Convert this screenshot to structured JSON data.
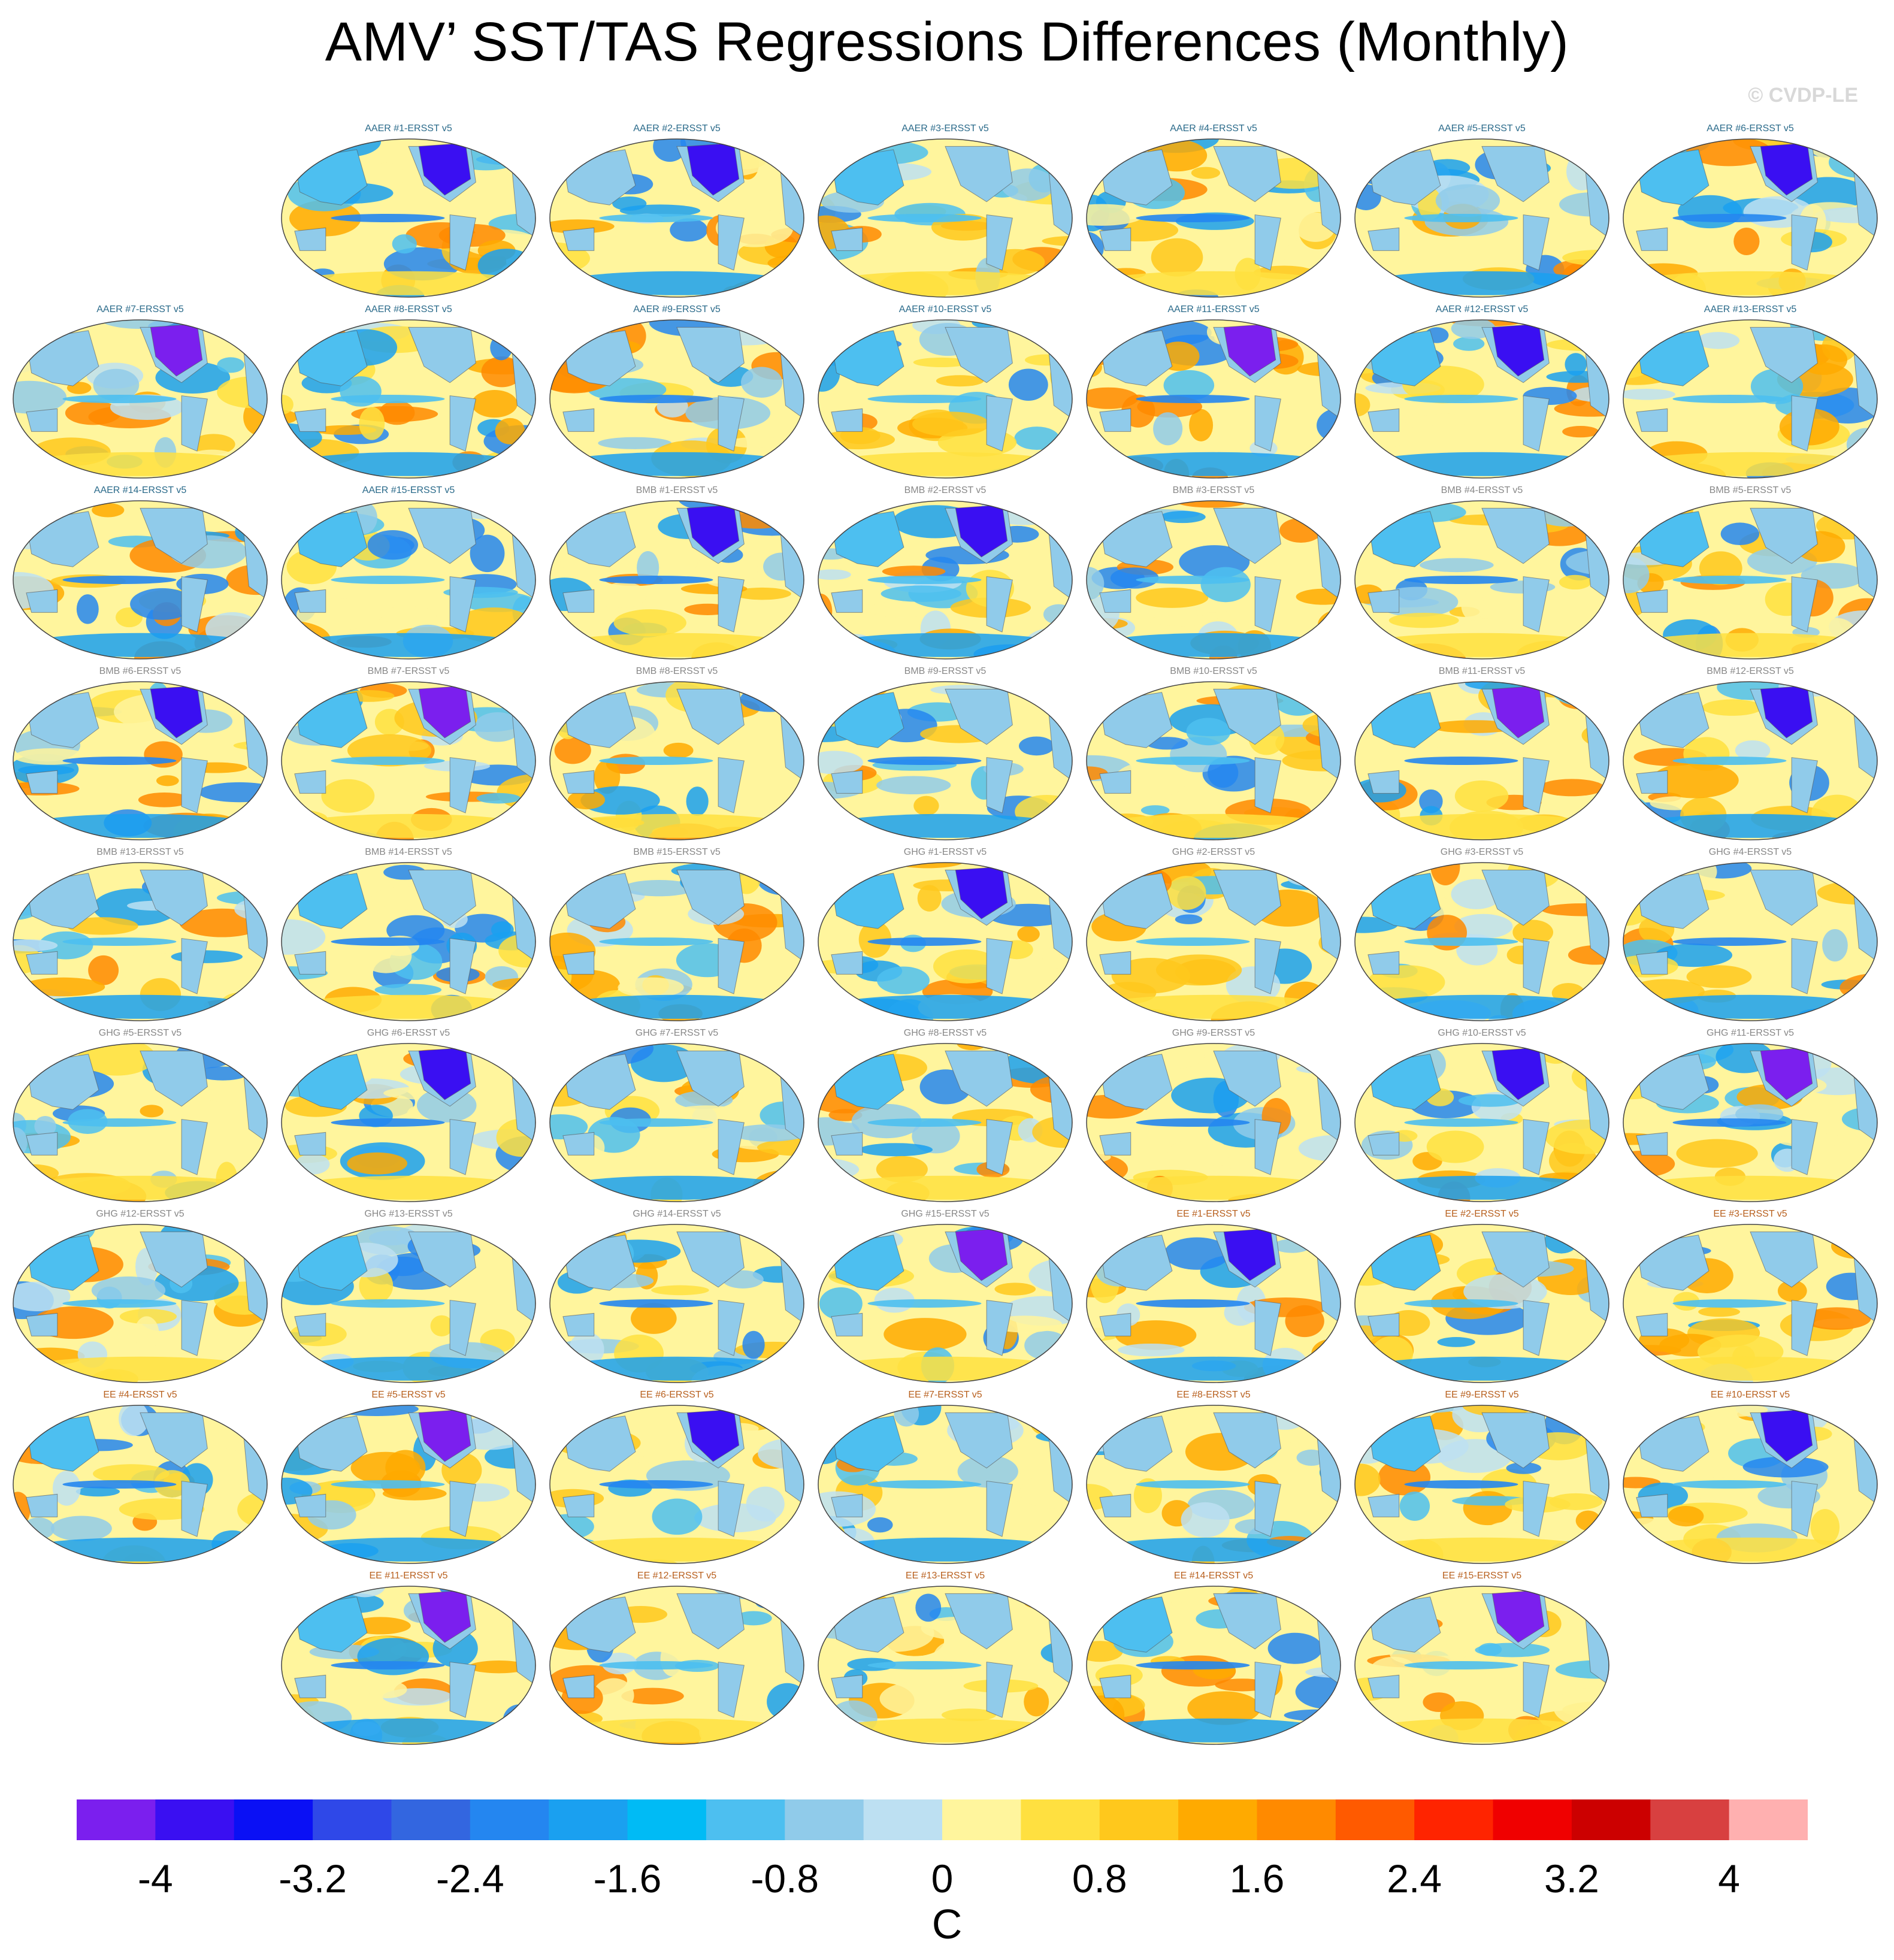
{
  "title": "AMV’ SST/TAS Regressions Differences (Monthly)",
  "copyright": "© CVDP-LE",
  "label_colors": {
    "AAER": "#2a6a8a",
    "BMB": "#888888",
    "GHG": "#888888",
    "EE": "#b8601e"
  },
  "rows": [
    [
      null,
      "AAER #1-ERSST v5",
      "AAER #2-ERSST v5",
      "AAER #3-ERSST v5",
      "AAER #4-ERSST v5",
      "AAER #5-ERSST v5",
      "AAER #6-ERSST v5"
    ],
    [
      "AAER #7-ERSST v5",
      "AAER #8-ERSST v5",
      "AAER #9-ERSST v5",
      "AAER #10-ERSST v5",
      "AAER #11-ERSST v5",
      "AAER #12-ERSST v5",
      "AAER #13-ERSST v5"
    ],
    [
      "AAER #14-ERSST v5",
      "AAER #15-ERSST v5",
      "BMB #1-ERSST v5",
      "BMB #2-ERSST v5",
      "BMB #3-ERSST v5",
      "BMB #4-ERSST v5",
      "BMB #5-ERSST v5"
    ],
    [
      "BMB #6-ERSST v5",
      "BMB #7-ERSST v5",
      "BMB #8-ERSST v5",
      "BMB #9-ERSST v5",
      "BMB #10-ERSST v5",
      "BMB #11-ERSST v5",
      "BMB #12-ERSST v5"
    ],
    [
      "BMB #13-ERSST v5",
      "BMB #14-ERSST v5",
      "BMB #15-ERSST v5",
      "GHG #1-ERSST v5",
      "GHG #2-ERSST v5",
      "GHG #3-ERSST v5",
      "GHG #4-ERSST v5"
    ],
    [
      "GHG #5-ERSST v5",
      "GHG #6-ERSST v5",
      "GHG #7-ERSST v5",
      "GHG #8-ERSST v5",
      "GHG #9-ERSST v5",
      "GHG #10-ERSST v5",
      "GHG #11-ERSST v5"
    ],
    [
      "GHG #12-ERSST v5",
      "GHG #13-ERSST v5",
      "GHG #14-ERSST v5",
      "GHG #15-ERSST v5",
      "EE #1-ERSST v5",
      "EE #2-ERSST v5",
      "EE #3-ERSST v5"
    ],
    [
      "EE #4-ERSST v5",
      "EE #5-ERSST v5",
      "EE #6-ERSST v5",
      "EE #7-ERSST v5",
      "EE #8-ERSST v5",
      "EE #9-ERSST v5",
      "EE #10-ERSST v5"
    ],
    [
      null,
      "EE #11-ERSST v5",
      "EE #12-ERSST v5",
      "EE #13-ERSST v5",
      "EE #14-ERSST v5",
      "EE #15-ERSST v5",
      null
    ]
  ],
  "colorbar": {
    "colors": [
      "#7b1fee",
      "#3a0ff2",
      "#0a10f5",
      "#2f48e8",
      "#3366e0",
      "#2486f0",
      "#1aa0f0",
      "#00bbf5",
      "#4dbff0",
      "#90cbea",
      "#bde0f2",
      "#fff59d",
      "#ffe040",
      "#ffc81c",
      "#ffaa00",
      "#ff8a00",
      "#ff5a00",
      "#ff2400",
      "#f00000",
      "#cc0000",
      "#d84040",
      "#ffb0b0"
    ],
    "tick_labels": [
      "-4",
      "-3.2",
      "-2.4",
      "-1.6",
      "-0.8",
      "0",
      "0.8",
      "1.6",
      "2.4",
      "3.2",
      "4"
    ],
    "units": "C"
  }
}
